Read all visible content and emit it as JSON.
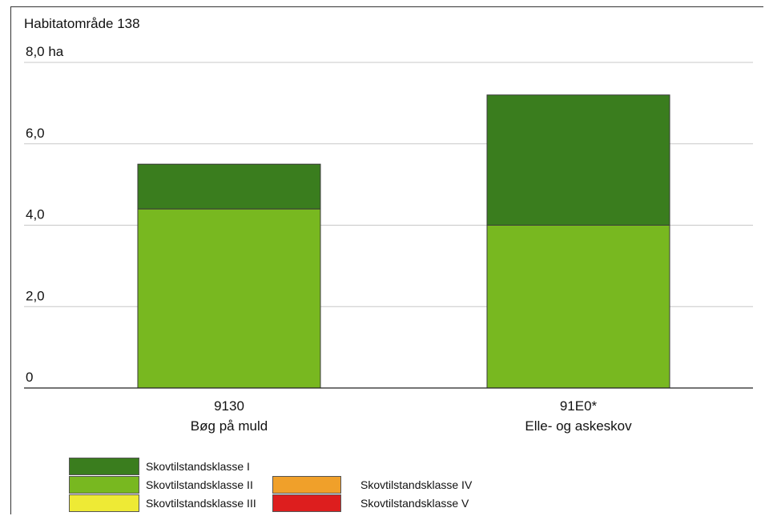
{
  "title": "Habitatområde 138",
  "chart_data": {
    "type": "bar",
    "stacked": true,
    "title": "Habitatområde 138",
    "ylabel": "",
    "unit_label": "8,0 ha",
    "ylim": [
      0,
      8
    ],
    "yticks": [
      {
        "value": 0,
        "label": "0"
      },
      {
        "value": 2,
        "label": "2,0"
      },
      {
        "value": 4,
        "label": "4,0"
      },
      {
        "value": 6,
        "label": "6,0"
      },
      {
        "value": 8,
        "label": "8,0 ha"
      }
    ],
    "grid": true,
    "categories": [
      {
        "code": "9130",
        "name": "Bøg på muld"
      },
      {
        "code": "91E0*",
        "name": "Elle- og askeskov"
      }
    ],
    "series": [
      {
        "name": "Skovtilstandsklasse I",
        "color": "#3a7d1e",
        "values": [
          1.1,
          3.2
        ]
      },
      {
        "name": "Skovtilstandsklasse II",
        "color": "#78b820",
        "values": [
          4.4,
          4.0
        ]
      },
      {
        "name": "Skovtilstandsklasse III",
        "color": "#eeea35",
        "values": [
          0,
          0
        ]
      },
      {
        "name": "Skovtilstandsklasse IV",
        "color": "#f0a02a",
        "values": [
          0,
          0
        ]
      },
      {
        "name": "Skovtilstandsklasse V",
        "color": "#dd1e1e",
        "values": [
          0,
          0
        ]
      }
    ],
    "stack_order": [
      "Skovtilstandsklasse II",
      "Skovtilstandsklasse I"
    ]
  },
  "legend": [
    {
      "label": "Skovtilstandsklasse I",
      "color": "#3a7d1e"
    },
    {
      "label": "Skovtilstandsklasse II",
      "color": "#78b820"
    },
    {
      "label": "Skovtilstandsklasse III",
      "color": "#eeea35"
    },
    {
      "label": "Skovtilstandsklasse IV",
      "color": "#f0a02a"
    },
    {
      "label": "Skovtilstandsklasse V",
      "color": "#dd1e1e"
    }
  ]
}
